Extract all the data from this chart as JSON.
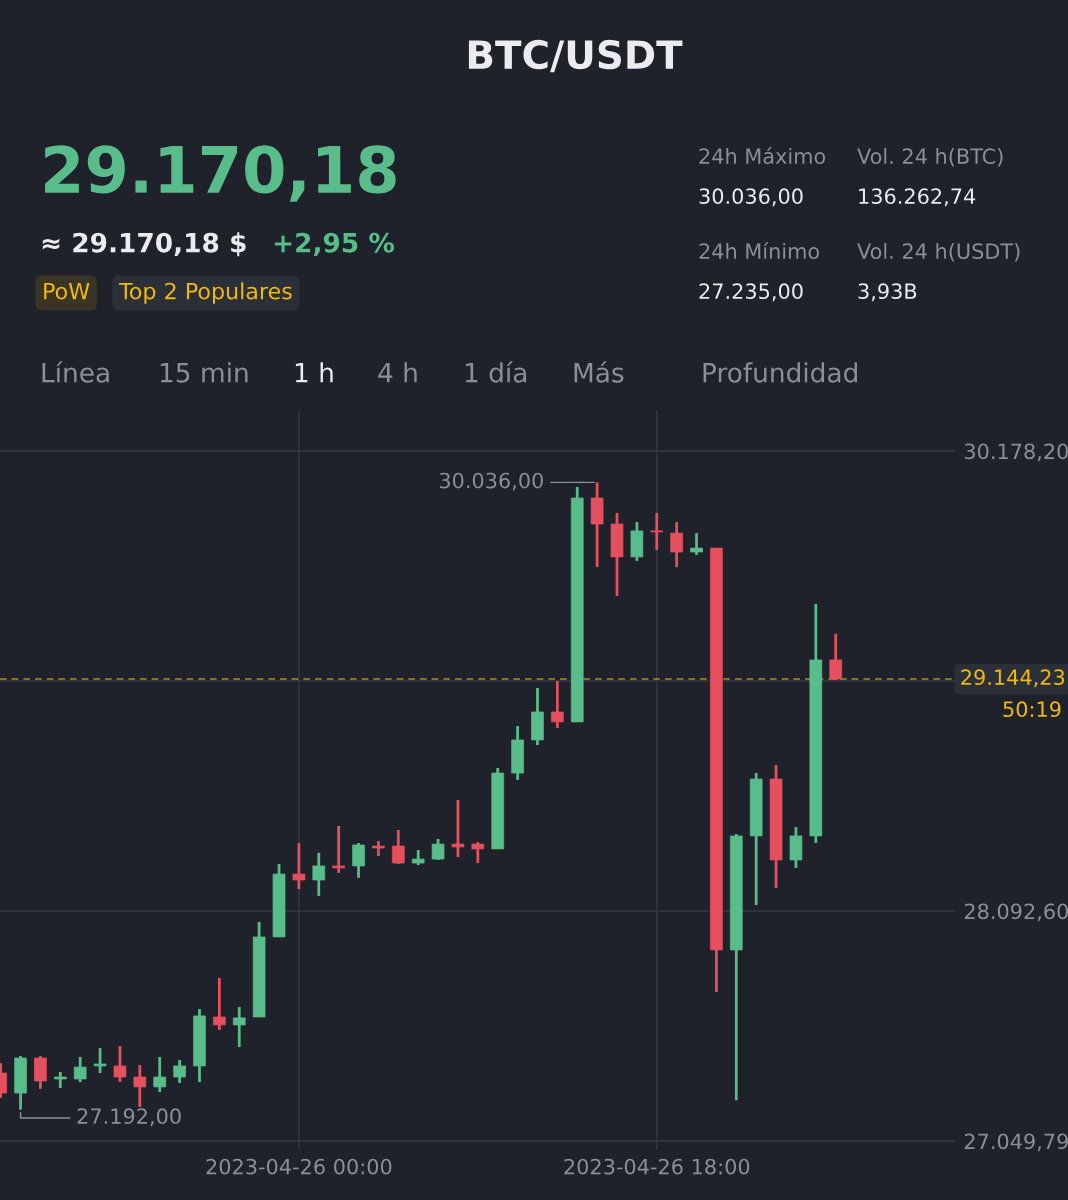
{
  "chart_data": {
    "type": "candlestick",
    "title": "BTC/USDT",
    "x": [
      "2023-04-25T09:00",
      "2023-04-25T10:00",
      "2023-04-25T11:00",
      "2023-04-25T12:00",
      "2023-04-25T13:00",
      "2023-04-25T14:00",
      "2023-04-25T15:00",
      "2023-04-25T16:00",
      "2023-04-25T17:00",
      "2023-04-25T18:00",
      "2023-04-25T19:00",
      "2023-04-25T20:00",
      "2023-04-25T21:00",
      "2023-04-25T22:00",
      "2023-04-25T23:00",
      "2023-04-26T00:00",
      "2023-04-26T01:00",
      "2023-04-26T02:00",
      "2023-04-26T03:00",
      "2023-04-26T04:00",
      "2023-04-26T05:00",
      "2023-04-26T06:00",
      "2023-04-26T07:00",
      "2023-04-26T08:00",
      "2023-04-26T09:00",
      "2023-04-26T10:00",
      "2023-04-26T11:00",
      "2023-04-26T12:00",
      "2023-04-26T13:00",
      "2023-04-26T14:00",
      "2023-04-26T15:00",
      "2023-04-26T16:00",
      "2023-04-26T17:00",
      "2023-04-26T18:00",
      "2023-04-26T19:00",
      "2023-04-26T20:00",
      "2023-04-26T21:00",
      "2023-04-26T22:00",
      "2023-04-26T23:00",
      "2023-04-27T00:00",
      "2023-04-27T01:00",
      "2023-04-27T02:00",
      "2023-04-27T03:00"
    ],
    "ohlc": [
      [
        27358,
        27403,
        27245,
        27267
      ],
      [
        27267,
        27435,
        27192,
        27426
      ],
      [
        27426,
        27435,
        27286,
        27322
      ],
      [
        27331,
        27363,
        27290,
        27340
      ],
      [
        27331,
        27431,
        27317,
        27385
      ],
      [
        27390,
        27471,
        27358,
        27399
      ],
      [
        27390,
        27480,
        27317,
        27340
      ],
      [
        27340,
        27394,
        27204,
        27295
      ],
      [
        27295,
        27431,
        27272,
        27340
      ],
      [
        27340,
        27417,
        27313,
        27390
      ],
      [
        27390,
        27648,
        27317,
        27617
      ],
      [
        27612,
        27789,
        27553,
        27576
      ],
      [
        27576,
        27657,
        27476,
        27608
      ],
      [
        27612,
        28043,
        27612,
        27975
      ],
      [
        27975,
        28306,
        27975,
        28260
      ],
      [
        28260,
        28401,
        28192,
        28233
      ],
      [
        28233,
        28356,
        28161,
        28297
      ],
      [
        28297,
        28478,
        28265,
        28288
      ],
      [
        28297,
        28401,
        28243,
        28392
      ],
      [
        28387,
        28410,
        28342,
        28378
      ],
      [
        28387,
        28460,
        28306,
        28310
      ],
      [
        28310,
        28369,
        28301,
        28328
      ],
      [
        28328,
        28419,
        28324,
        28396
      ],
      [
        28396,
        28596,
        28337,
        28383
      ],
      [
        28396,
        28405,
        28310,
        28374
      ],
      [
        28374,
        28741,
        28374,
        28718
      ],
      [
        28718,
        28931,
        28687,
        28868
      ],
      [
        28868,
        29104,
        28845,
        28995
      ],
      [
        28995,
        29135,
        28922,
        28950
      ],
      [
        28950,
        30015,
        28950,
        29965
      ],
      [
        29965,
        30036,
        29652,
        29847
      ],
      [
        29847,
        29897,
        29521,
        29698
      ],
      [
        29698,
        29856,
        29680,
        29816
      ],
      [
        29816,
        29897,
        29729,
        29811
      ],
      [
        29806,
        29856,
        29652,
        29720
      ],
      [
        29720,
        29806,
        29707,
        29738
      ],
      [
        29738,
        29738,
        27725,
        27916
      ],
      [
        27916,
        28442,
        27235,
        28433
      ],
      [
        28433,
        28718,
        28120,
        28691
      ],
      [
        28691,
        28755,
        28197,
        28324
      ],
      [
        28324,
        28473,
        28288,
        28433
      ],
      [
        28433,
        29485,
        28401,
        29231
      ],
      [
        29231,
        29349,
        29140,
        29144.23
      ]
    ],
    "colors": [
      "#e5505f",
      "#58bd8a",
      "#e5505f",
      "#58bd8a",
      "#58bd8a",
      "#58bd8a",
      "#e5505f",
      "#e5505f",
      "#58bd8a",
      "#58bd8a",
      "#58bd8a",
      "#e5505f",
      "#58bd8a",
      "#58bd8a",
      "#58bd8a",
      "#e5505f",
      "#58bd8a",
      "#e5505f",
      "#58bd8a",
      "#e5505f",
      "#e5505f",
      "#58bd8a",
      "#58bd8a",
      "#e5505f",
      "#e5505f",
      "#58bd8a",
      "#58bd8a",
      "#58bd8a",
      "#e5505f",
      "#58bd8a",
      "#e5505f",
      "#e5505f",
      "#58bd8a",
      "#e5505f",
      "#e5505f",
      "#58bd8a",
      "#e5505f",
      "#58bd8a",
      "#58bd8a",
      "#e5505f",
      "#58bd8a",
      "#58bd8a",
      "#e5505f"
    ],
    "xlim": [
      "2023-04-25T08:58",
      "2023-04-27T09:00"
    ],
    "xticks": [
      {
        "value": "2023-04-26T00:00",
        "label": "2023-04-26 00:00"
      },
      {
        "value": "2023-04-26T18:00",
        "label": "2023-04-26 18:00"
      }
    ],
    "ylim": [
      27009,
      30364
    ],
    "yticks": [
      {
        "value": 27049.79,
        "label": "27.049,79"
      },
      {
        "value": 28092.6,
        "label": "28.092,60"
      },
      {
        "value": 29135.4,
        "label": null
      },
      {
        "value": 30178.2,
        "label": "30.178,20"
      }
    ],
    "grid": true,
    "ref_lines": [
      {
        "axis": "y",
        "value": 29144.23,
        "label": "29.144,23",
        "color": "#f0b90b",
        "line_style": "dashed"
      }
    ],
    "annotations": [
      "29.170,18",
      "≈ 29.170,18 $",
      "+2,95 %",
      "PoW",
      "Top 2 Populares",
      "24h Máximo",
      "30.036,00",
      "Vol. 24 h(BTC)",
      "136.262,74",
      "24h Mínimo",
      "27.235,00",
      "Vol. 24 h(USDT)",
      "3,93B",
      "Línea",
      "15 min",
      "1 h",
      "4 h",
      "1 día",
      "Más",
      "Profundidad",
      "50:19",
      {
        "text": "30.036,00",
        "x": "2023-04-26T15:00",
        "y": 30036
      },
      {
        "text": "27.192,00",
        "x": "2023-04-25T10:00",
        "y": 27192
      }
    ]
  }
}
